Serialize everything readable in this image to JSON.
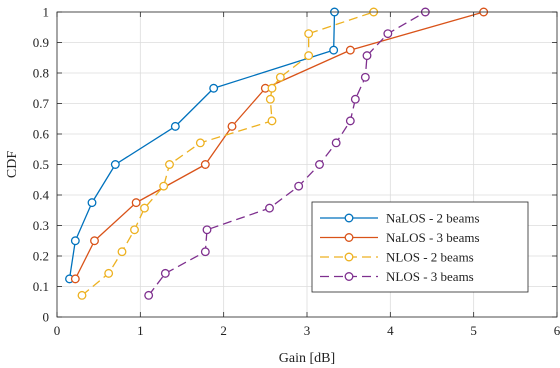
{
  "chart_data": {
    "type": "line",
    "title": "",
    "xlabel": "Gain [dB]",
    "ylabel": "CDF",
    "xlim": [
      0,
      6
    ],
    "ylim": [
      0,
      1
    ],
    "xticks": [
      0,
      1,
      2,
      3,
      4,
      5,
      6
    ],
    "yticks": [
      0,
      0.1,
      0.2,
      0.3,
      0.4,
      0.5,
      0.6,
      0.7,
      0.8,
      0.9,
      1
    ],
    "grid": true,
    "legend_position": "bottom-right",
    "series": [
      {
        "name": "NaLOS - 2 beams",
        "color": "#0072BD",
        "dash": "solid",
        "x": [
          0.15,
          0.22,
          0.42,
          0.7,
          1.42,
          1.88,
          3.32,
          3.33
        ],
        "y": [
          0.125,
          0.25,
          0.375,
          0.5,
          0.625,
          0.75,
          0.875,
          1.0
        ]
      },
      {
        "name": "NaLOS - 3 beams",
        "color": "#D95319",
        "dash": "solid",
        "x": [
          0.22,
          0.45,
          0.95,
          1.78,
          2.1,
          2.5,
          3.52,
          5.12
        ],
        "y": [
          0.125,
          0.25,
          0.375,
          0.5,
          0.625,
          0.75,
          0.875,
          1.0
        ]
      },
      {
        "name": "NLOS - 2 beams",
        "color": "#EDB120",
        "dash": "dashed",
        "x": [
          0.3,
          0.62,
          0.78,
          0.93,
          1.05,
          1.28,
          1.35,
          1.72,
          2.58,
          2.56,
          2.58,
          2.68,
          3.02,
          3.02,
          3.8
        ],
        "y": [
          0.071,
          0.143,
          0.214,
          0.286,
          0.357,
          0.429,
          0.5,
          0.571,
          0.643,
          0.714,
          0.75,
          0.786,
          0.857,
          0.929,
          1.0
        ]
      },
      {
        "name": "NLOS - 3 beams",
        "color": "#7E2F8E",
        "dash": "dashed",
        "x": [
          1.1,
          1.3,
          1.78,
          1.8,
          2.55,
          2.9,
          3.15,
          3.35,
          3.52,
          3.58,
          3.7,
          3.72,
          3.97,
          4.42
        ],
        "y": [
          0.071,
          0.143,
          0.214,
          0.286,
          0.357,
          0.429,
          0.5,
          0.571,
          0.643,
          0.714,
          0.786,
          0.857,
          0.929,
          1.0
        ]
      }
    ]
  }
}
